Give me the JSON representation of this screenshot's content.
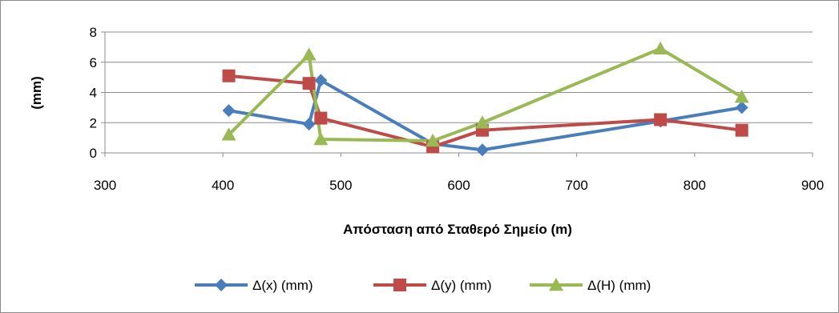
{
  "chart_data": {
    "type": "line",
    "title": "",
    "xlabel": "Απόσταση από Σταθερό Σημείο (m)",
    "ylabel": "(mm)",
    "xlim": [
      300,
      900
    ],
    "ylim": [
      0,
      8
    ],
    "x_ticks": [
      "300",
      "400",
      "500",
      "600",
      "700",
      "800",
      "900"
    ],
    "y_ticks": [
      "0",
      "2",
      "4",
      "6",
      "8"
    ],
    "grid": "horizontal",
    "legend_position": "bottom",
    "series": [
      {
        "name": "Δ(x) (mm)",
        "color": "#4a7ebb",
        "marker": "diamond",
        "x": [
          405,
          473,
          483,
          578,
          620,
          771,
          840
        ],
        "y": [
          2.8,
          1.9,
          4.8,
          0.6,
          0.2,
          2.1,
          3.0
        ]
      },
      {
        "name": "Δ(y) (mm)",
        "color": "#be4b48",
        "marker": "square",
        "x": [
          405,
          473,
          483,
          578,
          620,
          771,
          840
        ],
        "y": [
          5.1,
          4.6,
          2.3,
          0.4,
          1.5,
          2.2,
          1.5
        ]
      },
      {
        "name": "Δ(H) (mm)",
        "color": "#98b954",
        "marker": "triangle",
        "x": [
          405,
          473,
          483,
          578,
          620,
          771,
          840
        ],
        "y": [
          1.2,
          6.5,
          0.9,
          0.8,
          2.0,
          6.9,
          3.7
        ]
      }
    ]
  }
}
